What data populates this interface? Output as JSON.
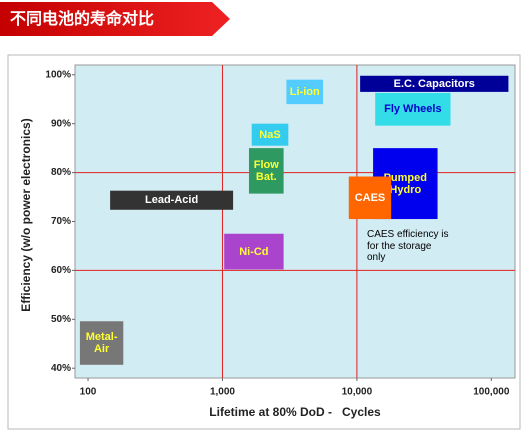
{
  "header": {
    "title": "不同电池的寿命对比"
  },
  "chart_data": {
    "type": "region",
    "x_label": "Lifetime at 80% DoD -   Cycles",
    "y_label": "Efficiency (w/o power electronics)",
    "xlim": [
      80,
      150000
    ],
    "log_x": true,
    "xticks": [
      100,
      {
        "value": 1000,
        "label": "1,000"
      },
      {
        "value": 10000,
        "label": "10,000"
      },
      {
        "value": 100000,
        "label": "100,000"
      }
    ],
    "ylim": [
      38,
      102
    ],
    "yticks": [
      {
        "value": 40,
        "label": "40%"
      },
      {
        "value": 50,
        "label": "50%"
      },
      {
        "value": 60,
        "label": "60%"
      },
      {
        "value": 70,
        "label": "70%"
      },
      {
        "value": 80,
        "label": "80%"
      },
      {
        "value": 90,
        "label": "90%"
      },
      {
        "value": 100,
        "label": "100%"
      }
    ],
    "xgrid": [
      1000,
      10000
    ],
    "ygrid": [
      60,
      80
    ],
    "grid_color": "#e02020",
    "regions": [
      {
        "name": "Lead-Acid",
        "color": "#333333",
        "label_color": "#ffffff",
        "x": [
          146,
          1200
        ],
        "y": [
          72.4,
          76.3
        ]
      },
      {
        "name": "Metal-Air",
        "color": "#777777",
        "label_color": "#ffff33",
        "x": [
          87,
          183
        ],
        "y": [
          40.7,
          49.6
        ]
      },
      {
        "name": "Li-ion",
        "color": "#55ccff",
        "label_color": "#ffff33",
        "x": [
          2990,
          5600
        ],
        "y": [
          94,
          99
        ]
      },
      {
        "name": "NaS",
        "color": "#33ccee",
        "label_color": "#ffff33",
        "x": [
          1650,
          3090
        ],
        "y": [
          85.5,
          90
        ]
      },
      {
        "name": "Flow Bat.",
        "color": "#2e9960",
        "label_color": "#ffff33",
        "x": [
          1575,
          2850
        ],
        "y": [
          75.7,
          85
        ]
      },
      {
        "name": "Ni-Cd",
        "color": "#aa44cc",
        "label_color": "#ffff33",
        "x": [
          1030,
          2850
        ],
        "y": [
          60.2,
          67.5
        ]
      },
      {
        "name": "E.C. Capacitors",
        "color": "#000099",
        "label_color": "#ffffff",
        "x": [
          10570,
          134000
        ],
        "y": [
          96.5,
          99.8
        ]
      },
      {
        "name": "Fly Wheels",
        "color": "#33dde8",
        "label_color": "#0000cc",
        "x": [
          13680,
          49700
        ],
        "y": [
          89.6,
          96.3
        ]
      },
      {
        "name": "Pumped Hydro",
        "color": "#0000ee",
        "label_color": "#ffff33",
        "x": [
          13200,
          39800
        ],
        "y": [
          70.5,
          85
        ]
      },
      {
        "name": "CAES",
        "color": "#ff6600",
        "label_color": "#ffffff",
        "x": [
          8700,
          18000
        ],
        "y": [
          70.5,
          79.2
        ]
      }
    ],
    "annotation": "CAES efficiency is for the storage only"
  }
}
